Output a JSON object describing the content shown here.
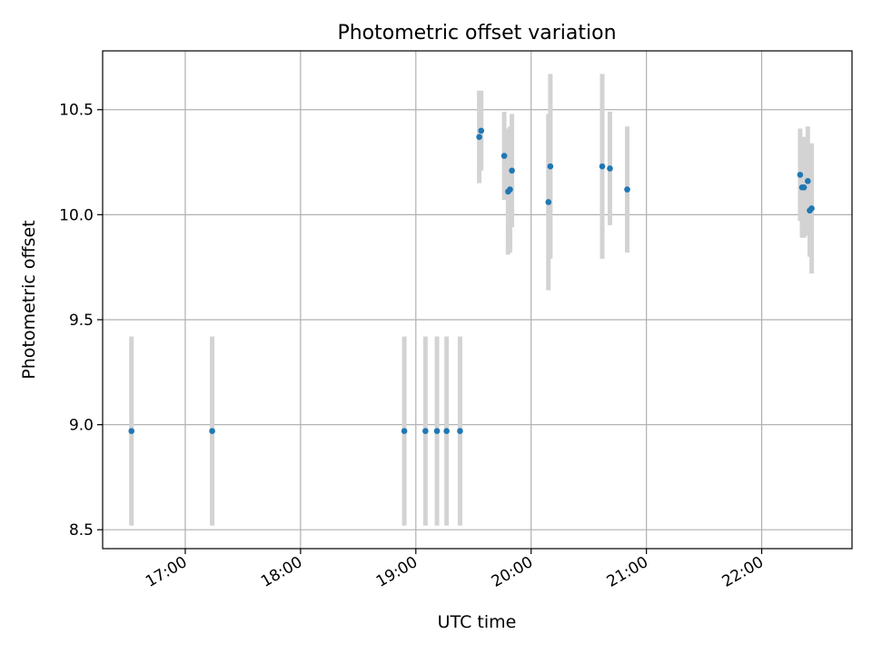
{
  "chart_data": {
    "type": "scatter",
    "title": "Photometric offset variation",
    "xlabel": "UTC time",
    "ylabel": "Photometric offset",
    "x_ticks": [
      "17:00",
      "18:00",
      "19:00",
      "20:00",
      "21:00",
      "22:00"
    ],
    "y_ticks": [
      "8.5",
      "9.0",
      "9.5",
      "10.0",
      "10.5"
    ],
    "xlim": [
      "16:17",
      "22:47"
    ],
    "ylim": [
      8.41,
      10.78
    ],
    "grid": true,
    "marker_color": "#1f77b4",
    "errorbar_color": "#d3d3d3",
    "points": [
      {
        "x": "16:32",
        "y": 8.97,
        "yerr": 0.45
      },
      {
        "x": "17:14",
        "y": 8.97,
        "yerr": 0.45
      },
      {
        "x": "18:54",
        "y": 8.97,
        "yerr": 0.45
      },
      {
        "x": "19:05",
        "y": 8.97,
        "yerr": 0.45
      },
      {
        "x": "19:11",
        "y": 8.97,
        "yerr": 0.45
      },
      {
        "x": "19:16",
        "y": 8.97,
        "yerr": 0.45
      },
      {
        "x": "19:23",
        "y": 8.97,
        "yerr": 0.45
      },
      {
        "x": "19:33",
        "y": 10.37,
        "yerr": 0.22
      },
      {
        "x": "19:34",
        "y": 10.4,
        "yerr": 0.19
      },
      {
        "x": "19:46",
        "y": 10.28,
        "yerr": 0.21
      },
      {
        "x": "19:48",
        "y": 10.11,
        "yerr": 0.3
      },
      {
        "x": "19:49",
        "y": 10.12,
        "yerr": 0.3
      },
      {
        "x": "19:50",
        "y": 10.21,
        "yerr": 0.27
      },
      {
        "x": "20:09",
        "y": 10.06,
        "yerr": 0.42
      },
      {
        "x": "20:10",
        "y": 10.23,
        "yerr": 0.44
      },
      {
        "x": "20:37",
        "y": 10.23,
        "yerr": 0.44
      },
      {
        "x": "20:41",
        "y": 10.22,
        "yerr": 0.27
      },
      {
        "x": "20:50",
        "y": 10.12,
        "yerr": 0.3
      },
      {
        "x": "22:20",
        "y": 10.19,
        "yerr": 0.22
      },
      {
        "x": "22:21",
        "y": 10.13,
        "yerr": 0.24
      },
      {
        "x": "22:22",
        "y": 10.13,
        "yerr": 0.24
      },
      {
        "x": "22:24",
        "y": 10.16,
        "yerr": 0.26
      },
      {
        "x": "22:25",
        "y": 10.02,
        "yerr": 0.22
      },
      {
        "x": "22:26",
        "y": 10.03,
        "yerr": 0.31
      }
    ]
  }
}
